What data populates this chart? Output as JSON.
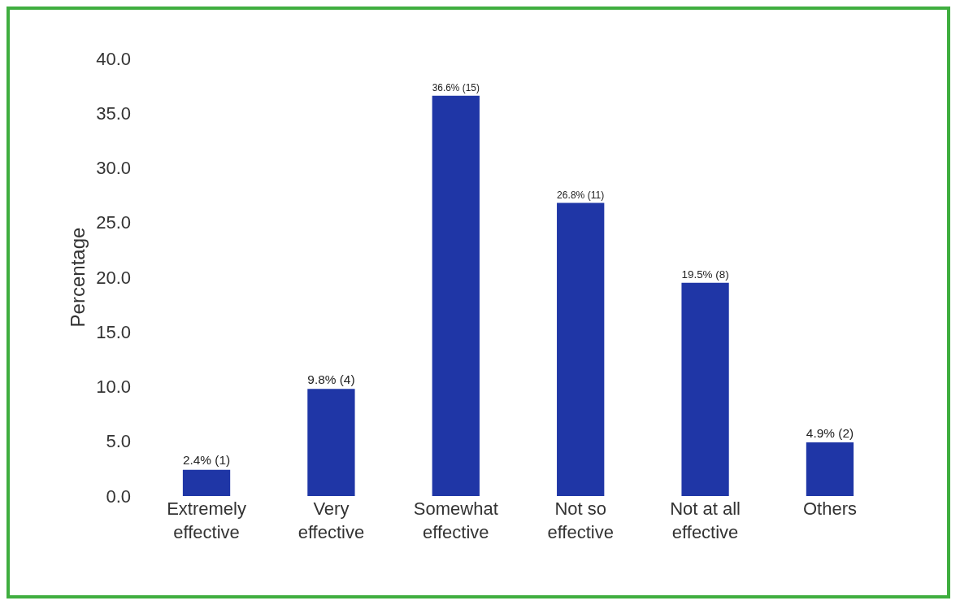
{
  "chart_data": {
    "type": "bar",
    "ylabel": "Percentage",
    "categories": [
      "Extremely\neffective",
      "Very\neffective",
      "Somewhat\neffective",
      "Not so\neffective",
      "Not at all\neffective",
      "Others"
    ],
    "values": [
      2.4,
      9.8,
      36.6,
      26.8,
      19.5,
      4.9
    ],
    "value_labels": [
      "2.4% (1)",
      "9.8% (4)",
      "36.6% (15)",
      "26.8% (11)",
      "19.5% (8)",
      "4.9% (2)"
    ],
    "color": "#1f36a6",
    "ylim": [
      0,
      40
    ],
    "yticks": [
      {
        "value": 0,
        "label": "0.0"
      },
      {
        "value": 5,
        "label": "5.0"
      },
      {
        "value": 10,
        "label": "10.0"
      },
      {
        "value": 15,
        "label": "15.0"
      },
      {
        "value": 20,
        "label": "20.0"
      },
      {
        "value": 25,
        "label": "25.0"
      },
      {
        "value": 30,
        "label": "30.0"
      },
      {
        "value": 35,
        "label": "35.0"
      },
      {
        "value": 40,
        "label": "40.0"
      }
    ],
    "grid": false
  }
}
